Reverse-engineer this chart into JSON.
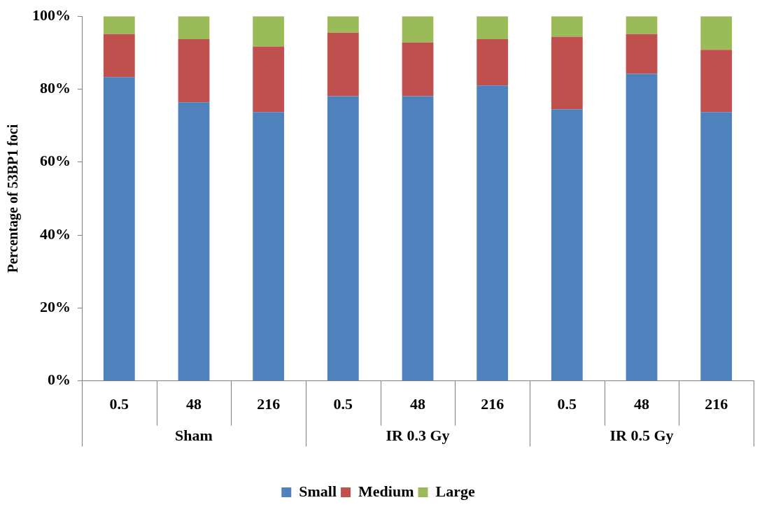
{
  "chart_data": {
    "type": "bar",
    "stacked": true,
    "ylabel": "Percentage of 53BP1 foci",
    "categories": [
      "0.5",
      "48",
      "216",
      "0.5",
      "48",
      "216",
      "0.5",
      "48",
      "216"
    ],
    "annotations": [
      "Sham",
      "IR 0.3 Gy",
      "IR 0.5 Gy"
    ],
    "series": [
      {
        "name": "Small",
        "color": "#4f81bd",
        "values": [
          83.3,
          76.4,
          73.7,
          78.1,
          78.1,
          81.0,
          74.5,
          84.2,
          73.7
        ]
      },
      {
        "name": "Medium",
        "color": "#c0504d",
        "values": [
          11.8,
          17.3,
          18.0,
          17.4,
          14.7,
          12.7,
          19.9,
          10.9,
          17.1
        ]
      },
      {
        "name": "Large",
        "color": "#9bbb59",
        "values": [
          4.9,
          6.3,
          8.3,
          4.5,
          7.2,
          6.3,
          5.6,
          4.9,
          9.2
        ]
      }
    ],
    "ylim": [
      0,
      100
    ],
    "yticks": [
      {
        "value": 0,
        "label": "0%"
      },
      {
        "value": 20,
        "label": "20%"
      },
      {
        "value": 40,
        "label": "40%"
      },
      {
        "value": 60,
        "label": "60%"
      },
      {
        "value": 80,
        "label": "80%"
      },
      {
        "value": 100,
        "label": "100%"
      }
    ],
    "grid": false,
    "legend": "bottom"
  }
}
